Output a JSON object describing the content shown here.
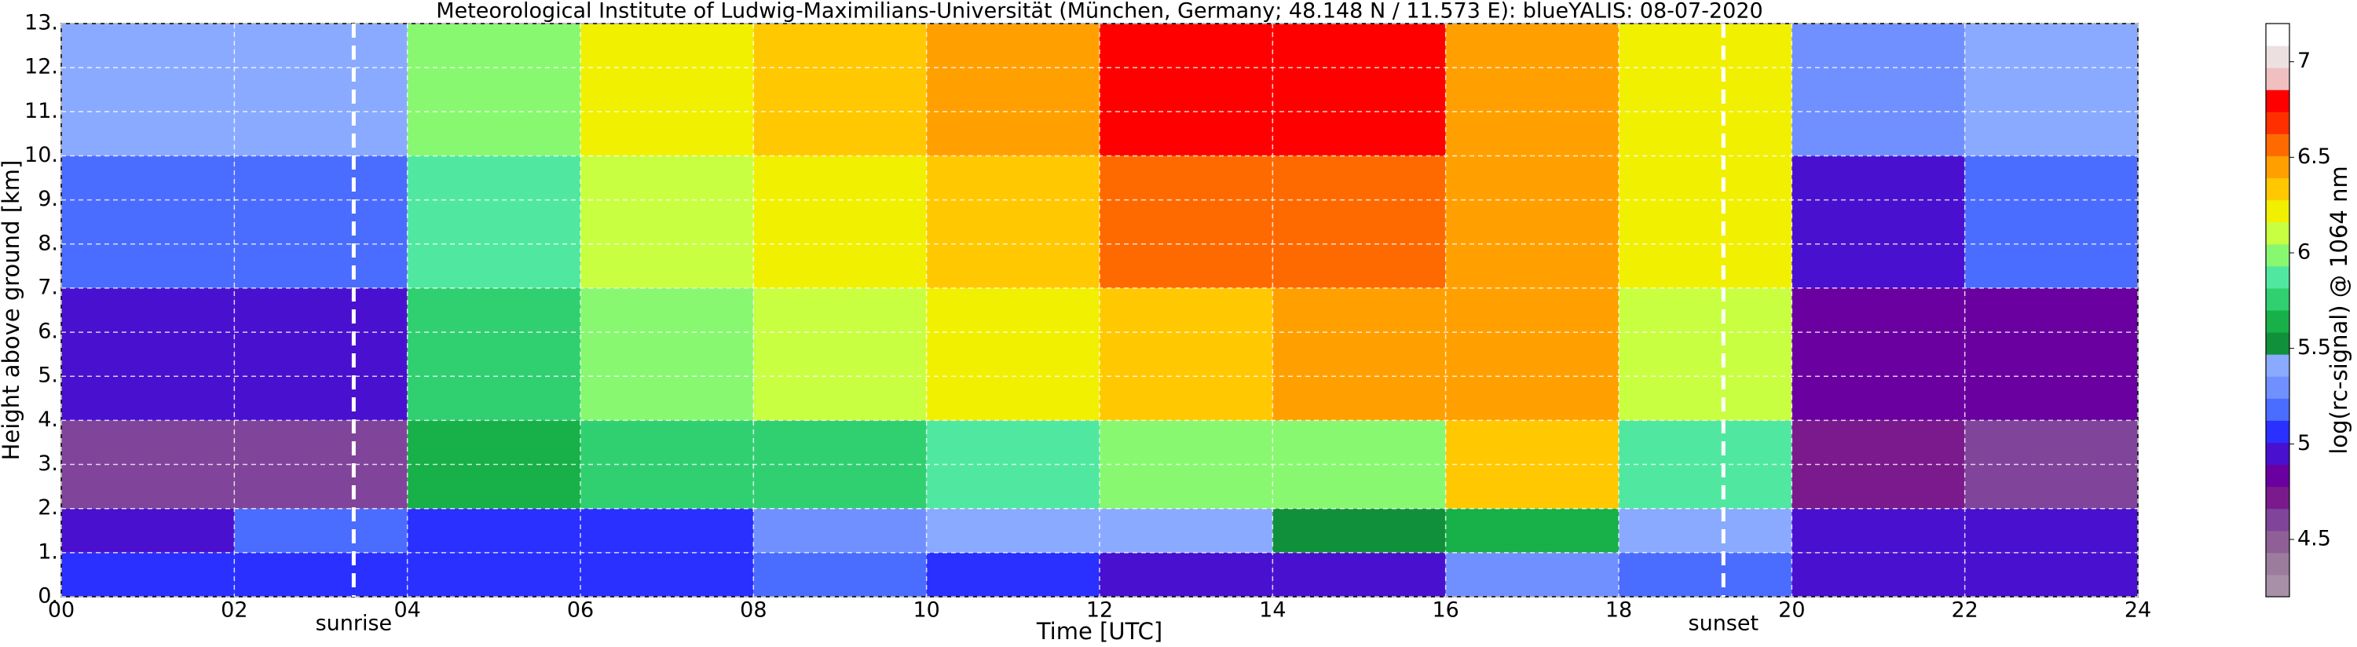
{
  "chart_data": {
    "type": "heatmap",
    "title": "Meteorological Institute of Ludwig-Maximilians-Universität (München, Germany; 48.148 N / 11.573 E):    blueYALIS: 08-07-2020",
    "x_label": "Time [UTC]",
    "y_label": "Height above ground [km]",
    "colorbar_label": "log(rc-signal) @ 1064 nm",
    "x_edges": [
      0,
      2,
      4,
      6,
      8,
      10,
      12,
      14,
      16,
      18,
      20,
      22,
      24
    ],
    "y_edges": [
      0,
      1,
      2,
      4,
      7,
      10,
      13
    ],
    "z": [
      [
        5.1,
        5.1,
        5.1,
        5.1,
        5.2,
        5.1,
        5.0,
        5.0,
        5.3,
        5.2,
        5.0,
        5.0
      ],
      [
        5.0,
        5.2,
        5.1,
        5.1,
        5.3,
        5.4,
        5.4,
        5.5,
        5.6,
        5.4,
        5.0,
        5.0
      ],
      [
        4.6,
        4.6,
        5.6,
        5.7,
        5.8,
        5.9,
        6.0,
        6.0,
        6.3,
        5.9,
        4.7,
        4.6
      ],
      [
        5.0,
        5.0,
        5.8,
        6.0,
        6.1,
        6.2,
        6.3,
        6.4,
        6.4,
        6.1,
        4.8,
        4.8
      ],
      [
        5.2,
        5.2,
        5.9,
        6.1,
        6.2,
        6.3,
        6.6,
        6.6,
        6.4,
        6.2,
        5.0,
        5.2
      ],
      [
        5.4,
        5.4,
        6.0,
        6.2,
        6.3,
        6.4,
        6.8,
        6.8,
        6.4,
        6.2,
        5.3,
        5.4
      ]
    ],
    "xlim": [
      0,
      24
    ],
    "ylim": [
      0,
      13
    ],
    "zlim": [
      4.2,
      7.2
    ],
    "xticks": [
      {
        "value": 0,
        "label": "00"
      },
      {
        "value": 2,
        "label": "02"
      },
      {
        "value": 4,
        "label": "04"
      },
      {
        "value": 6,
        "label": "06"
      },
      {
        "value": 8,
        "label": "08"
      },
      10,
      12,
      14,
      16,
      18,
      20,
      22,
      24
    ],
    "yticks": [
      {
        "value": 0,
        "label": "0."
      },
      {
        "value": 1,
        "label": "1."
      },
      {
        "value": 2,
        "label": "2."
      },
      {
        "value": 3,
        "label": "3."
      },
      {
        "value": 4,
        "label": "4."
      },
      {
        "value": 5,
        "label": "5."
      },
      {
        "value": 6,
        "label": "6."
      },
      {
        "value": 7,
        "label": "7."
      },
      {
        "value": 8,
        "label": "8."
      },
      {
        "value": 9,
        "label": "9."
      },
      {
        "value": 10,
        "label": "10."
      },
      {
        "value": 11,
        "label": "11."
      },
      {
        "value": 12,
        "label": "12."
      },
      {
        "value": 13,
        "label": "13."
      }
    ],
    "zticks": [
      4.5,
      5.0,
      5.5,
      6.0,
      6.5,
      7.0
    ],
    "colors": [
      "#a890a8",
      "#9c7c9e",
      "#8e6096",
      "#80449a",
      "#7a1a8c",
      "#6a00a0",
      "#4a10d0",
      "#2a30ff",
      "#4a6cff",
      "#7090ff",
      "#8aaaff",
      "#10903a",
      "#18b048",
      "#30d070",
      "#50e8a0",
      "#88f870",
      "#c8ff40",
      "#f0f000",
      "#ffc800",
      "#ffa000",
      "#ff6a00",
      "#ff3000",
      "#ff0000",
      "#f0c0c0",
      "#ece0e0",
      "#ffffff"
    ],
    "grid": true,
    "annotations": [
      {
        "x": 3.38,
        "label": "sunrise"
      },
      {
        "x": 19.21,
        "label": "sunset"
      }
    ]
  }
}
